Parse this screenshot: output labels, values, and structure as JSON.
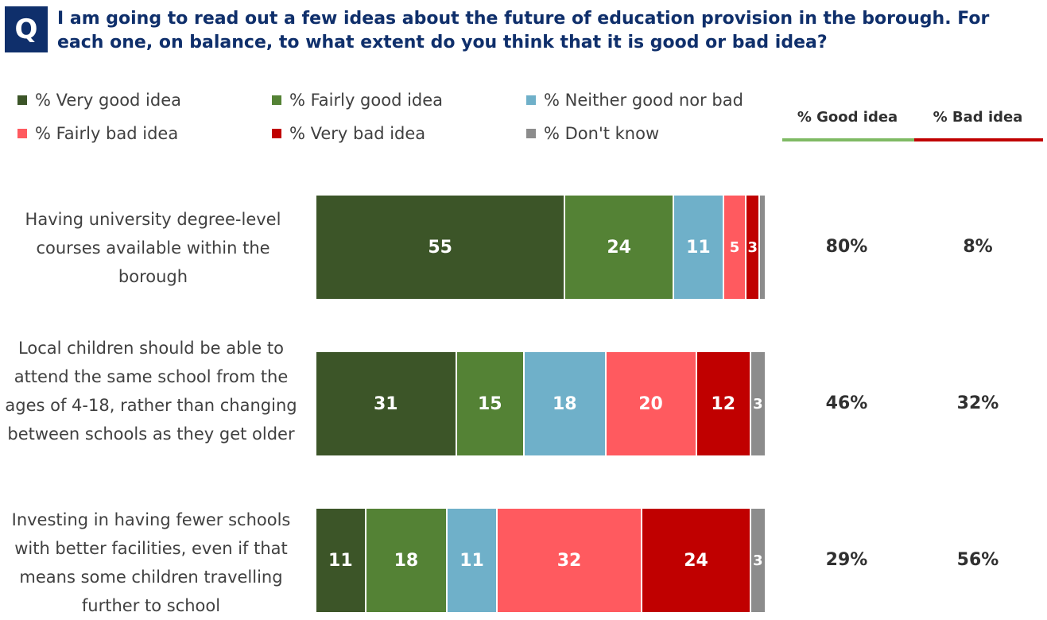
{
  "question": {
    "badge": "Q",
    "text": "I am going to read out a few ideas about the future of education provision in the borough.  For each one, on balance, to what extent do you think that it is good or bad idea?"
  },
  "legend": [
    {
      "label": "% Very good idea",
      "color": "#3c5528"
    },
    {
      "label": "% Fairly good idea",
      "color": "#548235"
    },
    {
      "label": "% Neither good nor bad",
      "color": "#6fb0c9"
    },
    {
      "label": "% Fairly bad idea",
      "color": "#ff5a5f"
    },
    {
      "label": "% Very bad idea",
      "color": "#c00000"
    },
    {
      "label": "% Don't know",
      "color": "#8c8c8c"
    }
  ],
  "summary_headers": {
    "good": "% Good idea",
    "bad": "% Bad idea",
    "good_color": "#7fba64",
    "bad_color": "#c00000"
  },
  "chart_data": {
    "type": "bar",
    "orientation": "horizontal",
    "stacked": true,
    "categories": [
      "Having university degree-level courses available within the borough",
      "Local children should be able to attend the same school from the ages of 4-18, rather than changing between schools as they get older",
      "Investing in having fewer schools with better facilities, even if that means some children travelling further to school"
    ],
    "series": [
      {
        "name": "% Very good idea",
        "values": [
          55,
          31,
          11
        ]
      },
      {
        "name": "% Fairly good idea",
        "values": [
          24,
          15,
          18
        ]
      },
      {
        "name": "% Neither good nor bad",
        "values": [
          11,
          18,
          11
        ]
      },
      {
        "name": "% Fairly bad idea",
        "values": [
          5,
          20,
          32
        ]
      },
      {
        "name": "% Very bad idea",
        "values": [
          3,
          12,
          24
        ]
      },
      {
        "name": "% Don't know",
        "values": [
          1,
          3,
          3
        ]
      }
    ],
    "data_labels": [
      [
        "55",
        "24",
        "11",
        "5",
        "3",
        ""
      ],
      [
        "31",
        "15",
        "18",
        "20",
        "12",
        "3"
      ],
      [
        "11",
        "18",
        "11",
        "32",
        "24",
        "3"
      ]
    ],
    "good_idea": [
      "80%",
      "46%",
      "29%"
    ],
    "bad_idea": [
      "8%",
      "32%",
      "56%"
    ],
    "legend_position": "top"
  }
}
